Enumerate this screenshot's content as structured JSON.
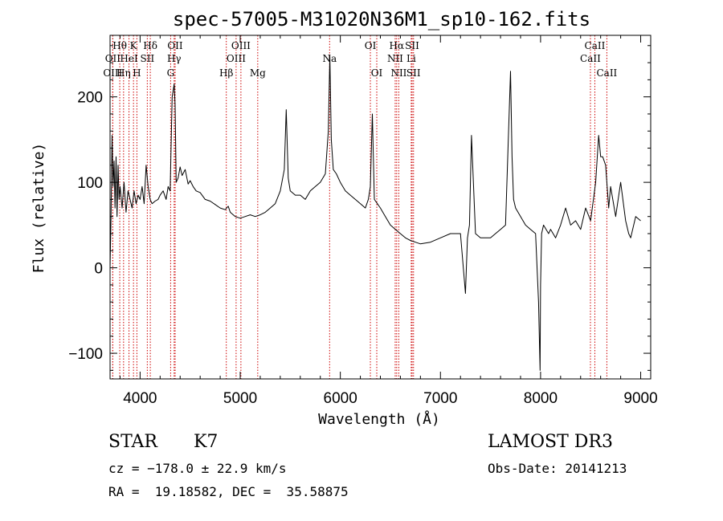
{
  "chart_data": {
    "type": "line",
    "title": "spec-57005-M31020N36M1_sp10-162.fits",
    "xlabel": "Wavelength (Å)",
    "ylabel": "Flux (relative)",
    "xlim": [
      3700,
      9100
    ],
    "ylim": [
      -130,
      272
    ],
    "xticks": [
      4000,
      5000,
      6000,
      7000,
      8000,
      9000
    ],
    "yticks": [
      -100,
      0,
      100,
      200
    ],
    "series": [
      {
        "name": "spectrum",
        "x": [
          3700,
          3710,
          3720,
          3730,
          3740,
          3750,
          3760,
          3770,
          3780,
          3790,
          3800,
          3820,
          3840,
          3860,
          3880,
          3900,
          3920,
          3940,
          3960,
          3980,
          4000,
          4020,
          4040,
          4060,
          4080,
          4100,
          4120,
          4150,
          4180,
          4200,
          4230,
          4260,
          4280,
          4300,
          4320,
          4340,
          4350,
          4360,
          4380,
          4400,
          4420,
          4450,
          4480,
          4500,
          4530,
          4560,
          4600,
          4650,
          4700,
          4750,
          4800,
          4850,
          4880,
          4900,
          4950,
          5000,
          5050,
          5100,
          5150,
          5200,
          5250,
          5300,
          5350,
          5400,
          5440,
          5460,
          5480,
          5500,
          5550,
          5600,
          5650,
          5700,
          5750,
          5800,
          5850,
          5880,
          5895,
          5910,
          5930,
          5960,
          6000,
          6050,
          6100,
          6150,
          6200,
          6250,
          6280,
          6300,
          6320,
          6340,
          6400,
          6450,
          6500,
          6550,
          6600,
          6650,
          6700,
          6750,
          6800,
          6900,
          7000,
          7100,
          7200,
          7250,
          7270,
          7290,
          7310,
          7350,
          7400,
          7450,
          7500,
          7550,
          7600,
          7650,
          7700,
          7715,
          7730,
          7750,
          7800,
          7850,
          7900,
          7950,
          7980,
          7995,
          8000,
          8010,
          8030,
          8080,
          8100,
          8150,
          8200,
          8250,
          8300,
          8350,
          8400,
          8450,
          8500,
          8550,
          8580,
          8600,
          8620,
          8650,
          8680,
          8700,
          8750,
          8800,
          8850,
          8880,
          8900,
          8950,
          9000
        ],
        "y": [
          0,
          60,
          155,
          95,
          125,
          70,
          130,
          60,
          120,
          80,
          95,
          70,
          100,
          65,
          90,
          80,
          70,
          90,
          75,
          85,
          80,
          95,
          75,
          120,
          95,
          80,
          75,
          78,
          80,
          85,
          90,
          80,
          95,
          90,
          200,
          215,
          190,
          100,
          105,
          118,
          108,
          115,
          98,
          102,
          95,
          90,
          88,
          80,
          78,
          74,
          70,
          68,
          72,
          65,
          60,
          58,
          60,
          62,
          60,
          62,
          65,
          70,
          75,
          90,
          115,
          185,
          105,
          90,
          85,
          85,
          80,
          90,
          95,
          100,
          110,
          160,
          248,
          150,
          115,
          110,
          100,
          90,
          85,
          80,
          75,
          70,
          80,
          95,
          180,
          80,
          70,
          60,
          50,
          45,
          40,
          35,
          32,
          30,
          28,
          30,
          35,
          40,
          40,
          -30,
          35,
          50,
          155,
          40,
          35,
          35,
          35,
          40,
          45,
          50,
          230,
          130,
          80,
          70,
          60,
          50,
          45,
          40,
          -40,
          -120,
          -20,
          40,
          50,
          40,
          45,
          35,
          50,
          70,
          50,
          55,
          45,
          70,
          55,
          100,
          155,
          130,
          130,
          120,
          70,
          95,
          60,
          100,
          55,
          40,
          35,
          60,
          55
        ]
      }
    ],
    "spectral_lines": [
      {
        "label": "Hθ",
        "x": 3797,
        "row": 1
      },
      {
        "label": "OII",
        "x": 3727,
        "row": 2
      },
      {
        "label": "OIII",
        "x": 3727,
        "row": 3
      },
      {
        "label": "K",
        "x": 3934,
        "row": 1
      },
      {
        "label": "HeI",
        "x": 3889,
        "row": 2
      },
      {
        "label": "Hη",
        "x": 3835,
        "row": 3
      },
      {
        "label": "Hδ",
        "x": 4102,
        "row": 1
      },
      {
        "label": "SII",
        "x": 4072,
        "row": 2
      },
      {
        "label": "H",
        "x": 3968,
        "row": 3
      },
      {
        "label": "OII",
        "x": 4350,
        "row": 1
      },
      {
        "label": "Hγ",
        "x": 4340,
        "row": 2
      },
      {
        "label": "G",
        "x": 4305,
        "row": 3
      },
      {
        "label": "OIII",
        "x": 5007,
        "row": 1
      },
      {
        "label": "OIII",
        "x": 4959,
        "row": 2
      },
      {
        "label": "Hβ",
        "x": 4861,
        "row": 3
      },
      {
        "label": "Mg",
        "x": 5175,
        "row": 3
      },
      {
        "label": "Na",
        "x": 5893,
        "row": 2
      },
      {
        "label": "OI",
        "x": 6300,
        "row": 1
      },
      {
        "label": "OI",
        "x": 6364,
        "row": 3
      },
      {
        "label": "Hα",
        "x": 6563,
        "row": 1
      },
      {
        "label": "NII",
        "x": 6548,
        "row": 2
      },
      {
        "label": "NII",
        "x": 6584,
        "row": 3
      },
      {
        "label": "SII",
        "x": 6717,
        "row": 1
      },
      {
        "label": "Li",
        "x": 6708,
        "row": 2
      },
      {
        "label": "SII",
        "x": 6731,
        "row": 3
      },
      {
        "label": "CaII",
        "x": 8542,
        "row": 1
      },
      {
        "label": "CaII",
        "x": 8498,
        "row": 2
      },
      {
        "label": "CaII",
        "x": 8662,
        "row": 3
      }
    ]
  },
  "info": {
    "class": "STAR",
    "subclass": "K7",
    "cz": "cz = −178.0 ± 22.9 km/s",
    "coords": "RA =  19.18582, DEC =  35.58875",
    "survey": "LAMOST DR3",
    "obs_date": "Obs-Date: 20141213"
  },
  "colors": {
    "line": "#000000",
    "marker": "#cc0000"
  }
}
